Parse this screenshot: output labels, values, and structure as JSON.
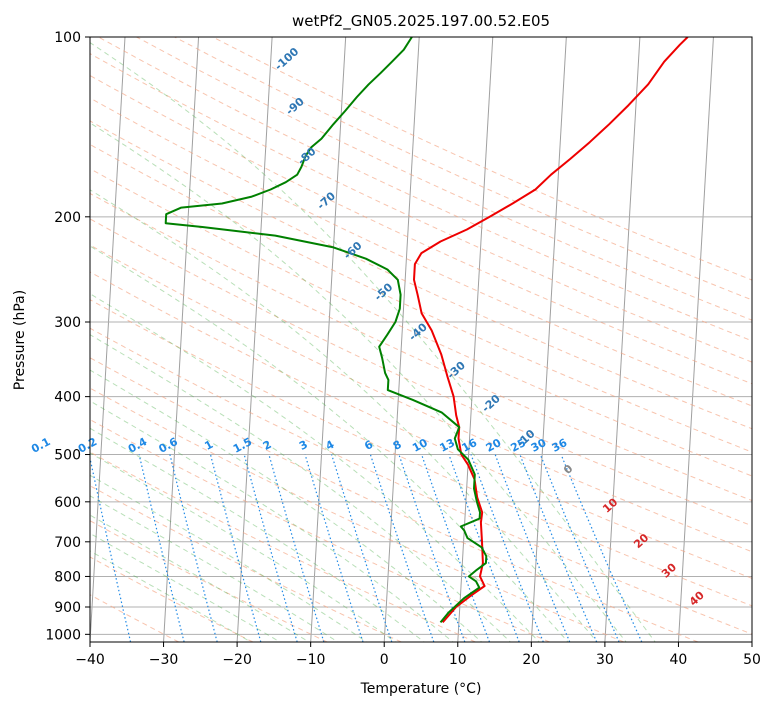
{
  "chart_data": {
    "type": "line",
    "title": "wetPf2_GN05.2025.197.00.52.E05",
    "xlabel": "Temperature (°C)",
    "ylabel": "Pressure (hPa)",
    "xlim": [
      -40,
      50
    ],
    "ylim": [
      1030,
      100
    ],
    "y_scale": "log",
    "grid": true,
    "x_ticks": [
      -40,
      -30,
      -20,
      -10,
      0,
      10,
      20,
      30,
      40,
      50
    ],
    "y_ticks": [
      100,
      200,
      300,
      400,
      500,
      600,
      700,
      800,
      900,
      1000
    ],
    "series": [
      {
        "color": "#ee0000",
        "points": [
          [
            7.8,
            955
          ],
          [
            9.5,
            900
          ],
          [
            11.5,
            860
          ],
          [
            13.2,
            830
          ],
          [
            12.5,
            800
          ],
          [
            12.8,
            760
          ],
          [
            12.5,
            700
          ],
          [
            12.2,
            650
          ],
          [
            12.3,
            625
          ],
          [
            11.5,
            590
          ],
          [
            11.0,
            550
          ],
          [
            10.0,
            520
          ],
          [
            9.0,
            500
          ],
          [
            8.5,
            470
          ],
          [
            8.5,
            450
          ],
          [
            8.0,
            430
          ],
          [
            7.5,
            400
          ],
          [
            6.5,
            370
          ],
          [
            5.5,
            340
          ],
          [
            4.0,
            310
          ],
          [
            2.5,
            290
          ],
          [
            1.8,
            270
          ],
          [
            1.2,
            255
          ],
          [
            1.2,
            240
          ],
          [
            2.0,
            230
          ],
          [
            4.5,
            220
          ],
          [
            8.0,
            210
          ],
          [
            11.0,
            200
          ],
          [
            14.0,
            190
          ],
          [
            17.0,
            180
          ],
          [
            19.0,
            170
          ],
          [
            21.5,
            160
          ],
          [
            24.0,
            150
          ],
          [
            26.5,
            140
          ],
          [
            29.0,
            130
          ],
          [
            31.5,
            120
          ],
          [
            33.5,
            110
          ],
          [
            35.5,
            103
          ],
          [
            36.5,
            100
          ]
        ]
      },
      {
        "color": "#008000",
        "points": [
          [
            7.5,
            955
          ],
          [
            8.5,
            920
          ],
          [
            10.5,
            870
          ],
          [
            12.5,
            835
          ],
          [
            12.0,
            815
          ],
          [
            11.0,
            800
          ],
          [
            12.0,
            780
          ],
          [
            13.2,
            760
          ],
          [
            13.2,
            740
          ],
          [
            12.5,
            715
          ],
          [
            10.5,
            690
          ],
          [
            10.0,
            670
          ],
          [
            9.5,
            660
          ],
          [
            12.0,
            640
          ],
          [
            12.0,
            625
          ],
          [
            11.5,
            600
          ],
          [
            11.0,
            570
          ],
          [
            11.0,
            540
          ],
          [
            10.0,
            510
          ],
          [
            8.5,
            490
          ],
          [
            8.0,
            470
          ],
          [
            8.5,
            450
          ],
          [
            6.0,
            425
          ],
          [
            2.0,
            405
          ],
          [
            -1.5,
            390
          ],
          [
            -1.5,
            375
          ],
          [
            -2.0,
            365
          ],
          [
            -2.5,
            345
          ],
          [
            -3.0,
            330
          ],
          [
            -2.0,
            315
          ],
          [
            -1.0,
            300
          ],
          [
            -0.5,
            285
          ],
          [
            -0.5,
            270
          ],
          [
            -1.0,
            255
          ],
          [
            -2.5,
            245
          ],
          [
            -5.5,
            235
          ],
          [
            -10.0,
            225
          ],
          [
            -18.0,
            215
          ],
          [
            -28.0,
            208
          ],
          [
            -33.0,
            205
          ],
          [
            -33.0,
            198
          ],
          [
            -31.0,
            193
          ],
          [
            -25.5,
            190
          ],
          [
            -21.5,
            185
          ],
          [
            -19.0,
            180
          ],
          [
            -17.0,
            175
          ],
          [
            -15.5,
            170
          ],
          [
            -15.0,
            165
          ],
          [
            -14.5,
            158
          ],
          [
            -13.8,
            153
          ],
          [
            -12.5,
            148
          ],
          [
            -11.0,
            140
          ],
          [
            -9.5,
            133
          ],
          [
            -8.0,
            126
          ],
          [
            -6.5,
            120
          ],
          [
            -5.0,
            115
          ],
          [
            -3.5,
            110
          ],
          [
            -2.0,
            105
          ],
          [
            -1.0,
            100
          ]
        ]
      }
    ],
    "mixing_ratio_labels": [
      "0.1",
      "0.2",
      "0.4",
      "0.6",
      "1",
      "1.5",
      "2",
      "3",
      "4",
      "6",
      "8",
      "10",
      "13",
      "16",
      "20",
      "25",
      "30",
      "36"
    ],
    "mixing_ratio_color": "#1e88e5",
    "moist_adiabat_labels": [
      "-100",
      "-90",
      "-80",
      "-70",
      "-60",
      "-50",
      "-40",
      "-30",
      "-20",
      "-10",
      "0",
      "10",
      "20",
      "30",
      "40"
    ]
  }
}
